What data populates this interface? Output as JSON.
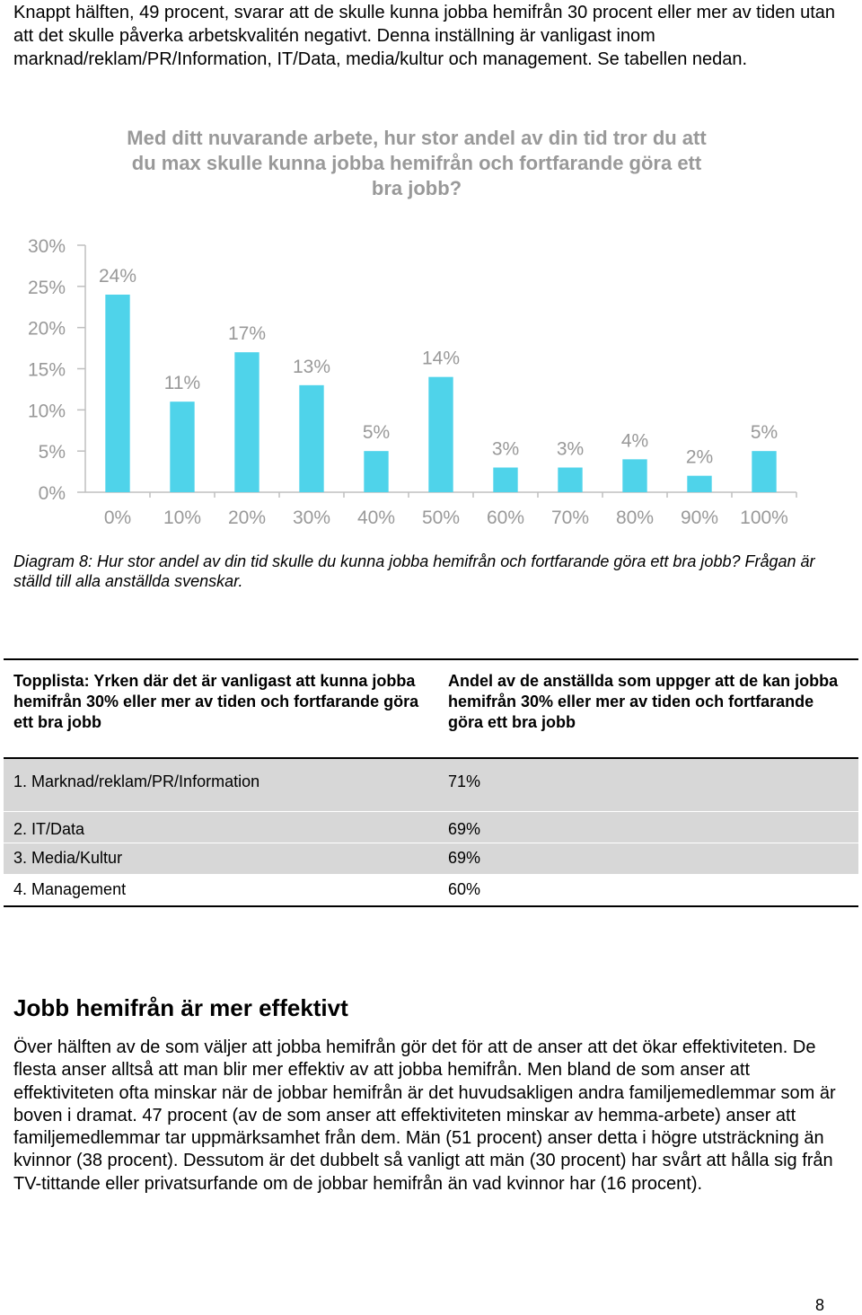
{
  "intro": "Knappt hälften, 49 procent, svarar att de skulle kunna jobba hemifrån 30 procent eller mer av tiden utan att det skulle påverka arbetskvalitén negativt. Denna inställning är vanligast inom marknad/reklam/PR/Information, IT/Data, media/kultur och management. Se tabellen nedan.",
  "chart_data": {
    "type": "bar",
    "title_lines": [
      "Med ditt nuvarande arbete, hur stor andel av din tid tror du att",
      "du max skulle kunna jobba hemifrån och fortfarande göra ett",
      "bra jobb?"
    ],
    "categories": [
      "0%",
      "10%",
      "20%",
      "30%",
      "40%",
      "50%",
      "60%",
      "70%",
      "80%",
      "90%",
      "100%"
    ],
    "values": [
      24,
      11,
      17,
      13,
      5,
      14,
      3,
      3,
      4,
      2,
      5
    ],
    "value_labels": [
      "24%",
      "11%",
      "17%",
      "13%",
      "5%",
      "14%",
      "3%",
      "3%",
      "4%",
      "2%",
      "5%"
    ],
    "y_ticks": [
      "0%",
      "5%",
      "10%",
      "15%",
      "20%",
      "25%",
      "30%"
    ],
    "ylim": [
      0,
      30
    ],
    "grid": false,
    "bar_color": "#4fd3ea"
  },
  "caption": "Diagram 8: Hur stor andel av din tid skulle du kunna jobba hemifrån och fortfarande göra ett bra jobb? Frågan är ställd till alla anställda svenskar.",
  "table": {
    "header_left": "Topplista: Yrken där det är vanligast att kunna jobba hemifrån 30% eller mer av tiden och fortfarande göra ett bra jobb",
    "header_right": "Andel av de anställda som uppger att de kan jobba hemifrån 30% eller mer av tiden och fortfarande göra ett bra jobb",
    "rows": [
      {
        "name": "1. Marknad/reklam/PR/Information",
        "value": "71%"
      },
      {
        "name": "2. IT/Data",
        "value": "69%"
      },
      {
        "name": "3. Media/Kultur",
        "value": "69%"
      },
      {
        "name": "4. Management",
        "value": "60%"
      }
    ]
  },
  "section_title": "Jobb hemifrån är mer effektivt",
  "body": "Över hälften av de som väljer att jobba hemifrån gör det för att de anser att det ökar effektiviteten. De flesta anser alltså att man blir mer effektiv av att jobba hemifrån. Men bland de som anser att effektiviteten ofta minskar när de jobbar hemifrån är det huvudsakligen andra familjemedlemmar som är boven i dramat. 47 procent (av de som anser att effektiviteten minskar av hemma-arbete) anser att familjemedlemmar tar uppmärksamhet från dem. Män (51 procent) anser detta i högre utsträckning än kvinnor (38 procent). Dessutom är det dubbelt så vanligt att män (30 procent) har svårt att hålla sig från TV-tittande eller privatsurfande om de jobbar hemifrån än vad kvinnor har (16 procent).",
  "page_number": "8"
}
